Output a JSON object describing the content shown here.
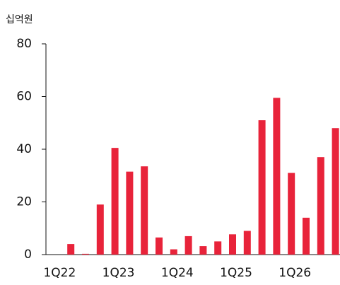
{
  "chart_data": {
    "type": "bar",
    "unit_label": "십억원",
    "categories": [
      "1Q22",
      null,
      null,
      null,
      "1Q23",
      null,
      null,
      null,
      "1Q24",
      null,
      null,
      null,
      "1Q25",
      null,
      null,
      null,
      "1Q26",
      null,
      null,
      null
    ],
    "values": [
      null,
      4,
      0.3,
      19,
      40.5,
      31.5,
      33.5,
      6.5,
      2,
      7,
      3.2,
      5,
      7.7,
      9,
      51,
      59.5,
      31,
      14,
      37,
      48
    ],
    "color": "#e8233a",
    "ylim": [
      0,
      80
    ],
    "yticks": [
      0,
      20,
      40,
      60,
      80
    ],
    "grid": false
  }
}
